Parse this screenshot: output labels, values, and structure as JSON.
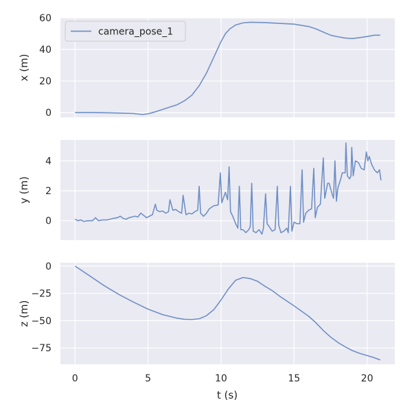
{
  "chart_data": {
    "type": "line",
    "legend": {
      "entries": [
        "camera_pose_1"
      ],
      "placement": "top-left"
    },
    "xlabel": "t (s)",
    "xlim": [
      -1.0,
      21.9
    ],
    "xticks": [
      0,
      5,
      10,
      15,
      20
    ],
    "grid": true,
    "colors": {
      "series": "#6f8fc6",
      "plot_bg": "#eaeaf2",
      "grid": "#ffffff"
    },
    "panels": [
      {
        "ylabel": "x (m)",
        "ylim": [
          -3,
          60
        ],
        "yticks": [
          0,
          20,
          40,
          60
        ],
        "series": [
          {
            "name": "camera_pose_1",
            "points": [
              [
                0,
                0
              ],
              [
                1,
                0
              ],
              [
                2,
                -0.1
              ],
              [
                3,
                -0.3
              ],
              [
                4,
                -0.6
              ],
              [
                4.6,
                -1.2
              ],
              [
                5,
                -0.8
              ],
              [
                5.5,
                0.5
              ],
              [
                6,
                2
              ],
              [
                6.5,
                3.5
              ],
              [
                7,
                5
              ],
              [
                7.5,
                7.5
              ],
              [
                8,
                11
              ],
              [
                8.5,
                17
              ],
              [
                9,
                25
              ],
              [
                9.5,
                35
              ],
              [
                10,
                45
              ],
              [
                10.3,
                50
              ],
              [
                10.6,
                53
              ],
              [
                11,
                55.5
              ],
              [
                11.5,
                56.8
              ],
              [
                12,
                57.2
              ],
              [
                12.5,
                57.1
              ],
              [
                13,
                57
              ],
              [
                14,
                56.5
              ],
              [
                15,
                56
              ],
              [
                16,
                54.5
              ],
              [
                16.5,
                53
              ],
              [
                17,
                51
              ],
              [
                17.5,
                49
              ],
              [
                18,
                48
              ],
              [
                18.5,
                47.2
              ],
              [
                19,
                46.9
              ],
              [
                19.5,
                47.5
              ],
              [
                20,
                48.2
              ],
              [
                20.5,
                49
              ],
              [
                20.9,
                49
              ]
            ]
          }
        ]
      },
      {
        "ylabel": "y (m)",
        "ylim": [
          -1.3,
          5.4
        ],
        "yticks": [
          0,
          2,
          4
        ],
        "series": [
          {
            "name": "camera_pose_1",
            "points": [
              [
                0,
                0.1
              ],
              [
                0.2,
                0
              ],
              [
                0.4,
                0.05
              ],
              [
                0.6,
                -0.05
              ],
              [
                0.9,
                0
              ],
              [
                1.2,
                0
              ],
              [
                1.4,
                0.2
              ],
              [
                1.6,
                0
              ],
              [
                1.9,
                0.05
              ],
              [
                2.2,
                0.05
              ],
              [
                2.4,
                0.1
              ],
              [
                2.6,
                0.15
              ],
              [
                2.9,
                0.2
              ],
              [
                3.1,
                0.3
              ],
              [
                3.3,
                0.15
              ],
              [
                3.5,
                0.1
              ],
              [
                3.7,
                0.2
              ],
              [
                3.9,
                0.25
              ],
              [
                4.1,
                0.3
              ],
              [
                4.3,
                0.25
              ],
              [
                4.5,
                0.5
              ],
              [
                4.7,
                0.35
              ],
              [
                4.9,
                0.2
              ],
              [
                5.1,
                0.3
              ],
              [
                5.3,
                0.4
              ],
              [
                5.5,
                1.1
              ],
              [
                5.6,
                0.7
              ],
              [
                5.8,
                0.6
              ],
              [
                6.0,
                0.65
              ],
              [
                6.2,
                0.5
              ],
              [
                6.4,
                0.6
              ],
              [
                6.5,
                1.4
              ],
              [
                6.7,
                0.7
              ],
              [
                6.9,
                0.75
              ],
              [
                7.1,
                0.6
              ],
              [
                7.3,
                0.5
              ],
              [
                7.4,
                1.7
              ],
              [
                7.6,
                0.4
              ],
              [
                7.8,
                0.5
              ],
              [
                8.0,
                0.45
              ],
              [
                8.2,
                0.6
              ],
              [
                8.4,
                0.7
              ],
              [
                8.5,
                2.3
              ],
              [
                8.6,
                0.5
              ],
              [
                8.8,
                0.3
              ],
              [
                9.0,
                0.5
              ],
              [
                9.2,
                0.8
              ],
              [
                9.5,
                1.0
              ],
              [
                9.8,
                1.05
              ],
              [
                9.95,
                3.2
              ],
              [
                10.05,
                1.2
              ],
              [
                10.3,
                1.9
              ],
              [
                10.45,
                1.4
              ],
              [
                10.55,
                3.6
              ],
              [
                10.65,
                0.6
              ],
              [
                10.8,
                0.3
              ],
              [
                11.0,
                -0.2
              ],
              [
                11.15,
                -0.5
              ],
              [
                11.25,
                2.3
              ],
              [
                11.35,
                -0.6
              ],
              [
                11.5,
                -0.6
              ],
              [
                11.7,
                -0.8
              ],
              [
                11.9,
                -0.6
              ],
              [
                12.0,
                -0.4
              ],
              [
                12.1,
                2.5
              ],
              [
                12.2,
                -0.7
              ],
              [
                12.4,
                -0.8
              ],
              [
                12.6,
                -0.6
              ],
              [
                12.8,
                -0.9
              ],
              [
                12.9,
                -0.5
              ],
              [
                13.05,
                1.8
              ],
              [
                13.15,
                -0.2
              ],
              [
                13.3,
                -0.4
              ],
              [
                13.5,
                -0.7
              ],
              [
                13.7,
                -0.6
              ],
              [
                13.85,
                2.3
              ],
              [
                13.95,
                -0.3
              ],
              [
                14.1,
                -0.8
              ],
              [
                14.3,
                -0.7
              ],
              [
                14.5,
                -0.5
              ],
              [
                14.6,
                -0.8
              ],
              [
                14.75,
                2.3
              ],
              [
                14.85,
                -0.7
              ],
              [
                15.0,
                -0.1
              ],
              [
                15.2,
                -0.2
              ],
              [
                15.4,
                -0.2
              ],
              [
                15.55,
                3.4
              ],
              [
                15.65,
                -0.1
              ],
              [
                15.8,
                0.5
              ],
              [
                16.0,
                0.7
              ],
              [
                16.2,
                0.8
              ],
              [
                16.35,
                3.5
              ],
              [
                16.45,
                0.2
              ],
              [
                16.6,
                0.9
              ],
              [
                16.8,
                1.1
              ],
              [
                17.0,
                4.2
              ],
              [
                17.1,
                1.5
              ],
              [
                17.3,
                2.5
              ],
              [
                17.4,
                2.5
              ],
              [
                17.6,
                1.8
              ],
              [
                17.7,
                1.5
              ],
              [
                17.8,
                4.0
              ],
              [
                17.9,
                1.3
              ],
              [
                18.0,
                2.2
              ],
              [
                18.2,
                2.8
              ],
              [
                18.3,
                3.2
              ],
              [
                18.5,
                3.2
              ],
              [
                18.55,
                5.2
              ],
              [
                18.65,
                3.0
              ],
              [
                18.8,
                2.8
              ],
              [
                18.9,
                3.0
              ],
              [
                18.95,
                4.9
              ],
              [
                19.05,
                3.0
              ],
              [
                19.2,
                4.0
              ],
              [
                19.4,
                3.9
              ],
              [
                19.6,
                3.5
              ],
              [
                19.8,
                3.4
              ],
              [
                19.95,
                4.6
              ],
              [
                20.05,
                4.0
              ],
              [
                20.15,
                4.3
              ],
              [
                20.3,
                3.8
              ],
              [
                20.5,
                3.4
              ],
              [
                20.7,
                3.2
              ],
              [
                20.85,
                3.4
              ],
              [
                20.95,
                2.7
              ]
            ]
          }
        ]
      },
      {
        "ylabel": "z (m)",
        "ylim": [
          -90,
          3
        ],
        "yticks": [
          0,
          -25,
          -50,
          -75
        ],
        "series": [
          {
            "name": "camera_pose_1",
            "points": [
              [
                0,
                0
              ],
              [
                1,
                -9
              ],
              [
                2,
                -18
              ],
              [
                3,
                -26
              ],
              [
                4,
                -33
              ],
              [
                5,
                -39.5
              ],
              [
                6,
                -44.5
              ],
              [
                7,
                -47.8
              ],
              [
                7.5,
                -48.8
              ],
              [
                8,
                -49
              ],
              [
                8.5,
                -48.3
              ],
              [
                9,
                -45.5
              ],
              [
                9.5,
                -40
              ],
              [
                10,
                -31
              ],
              [
                10.5,
                -21
              ],
              [
                11,
                -13
              ],
              [
                11.5,
                -10.5
              ],
              [
                12,
                -11.5
              ],
              [
                12.5,
                -14
              ],
              [
                13,
                -18.5
              ],
              [
                13.5,
                -22.5
              ],
              [
                14,
                -27.5
              ],
              [
                15,
                -36.5
              ],
              [
                16,
                -46
              ],
              [
                16.5,
                -52
              ],
              [
                17,
                -59
              ],
              [
                17.5,
                -65
              ],
              [
                18,
                -70
              ],
              [
                18.5,
                -74
              ],
              [
                19,
                -77.5
              ],
              [
                19.5,
                -80
              ],
              [
                20,
                -82
              ],
              [
                20.5,
                -84
              ],
              [
                20.9,
                -86
              ]
            ]
          }
        ]
      }
    ]
  }
}
